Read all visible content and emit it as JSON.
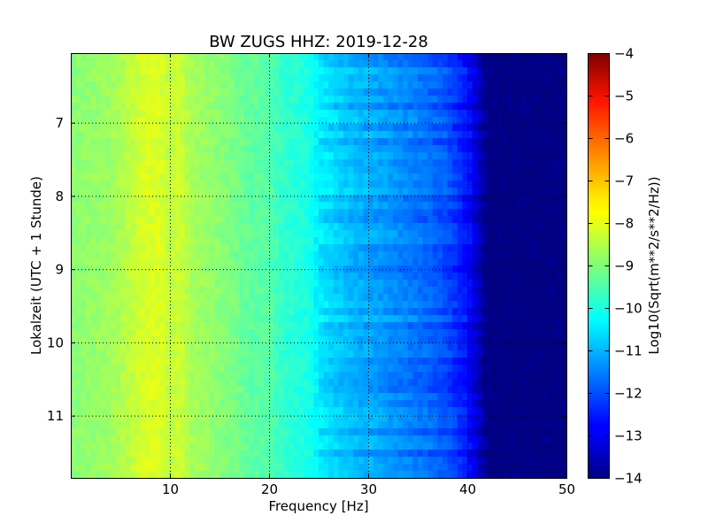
{
  "chart_data": {
    "type": "heatmap",
    "title": "BW ZUGS HHZ: 2019-12-28",
    "xlabel": "Frequency [Hz]",
    "ylabel": "Lokalzeit (UTC + 1 Stunde)",
    "xlim": [
      0,
      50
    ],
    "ylim": [
      11.85,
      6.05
    ],
    "y_inverted": true,
    "xticks": [
      10,
      20,
      30,
      40,
      50
    ],
    "yticks": [
      7,
      8,
      9,
      10,
      11
    ],
    "grid": true,
    "colormap": "jet",
    "colorbar": {
      "label": "Log10(Sqrt(m**2/s**2/Hz))",
      "range": [
        -14,
        -4
      ],
      "ticks": [
        -4,
        -5,
        -6,
        -7,
        -8,
        -9,
        -10,
        -11,
        -12,
        -13,
        -14
      ]
    },
    "spectrum_profile": {
      "frequency_hz": [
        0,
        2,
        4,
        6,
        7,
        8,
        9,
        10,
        11,
        12,
        14,
        16,
        18,
        20,
        21,
        22,
        24,
        25,
        26,
        28,
        30,
        32,
        34,
        36,
        38,
        40,
        41,
        42,
        50
      ],
      "log10_amplitude": [
        -8.9,
        -8.8,
        -8.7,
        -8.4,
        -8.2,
        -8.1,
        -8.1,
        -8.4,
        -8.2,
        -8.6,
        -8.8,
        -9.0,
        -9.3,
        -9.4,
        -9.7,
        -9.8,
        -10.0,
        -10.4,
        -10.6,
        -10.9,
        -11.1,
        -11.3,
        -11.5,
        -11.7,
        -12.0,
        -12.6,
        -13.2,
        -14.0,
        -14.0
      ]
    }
  }
}
